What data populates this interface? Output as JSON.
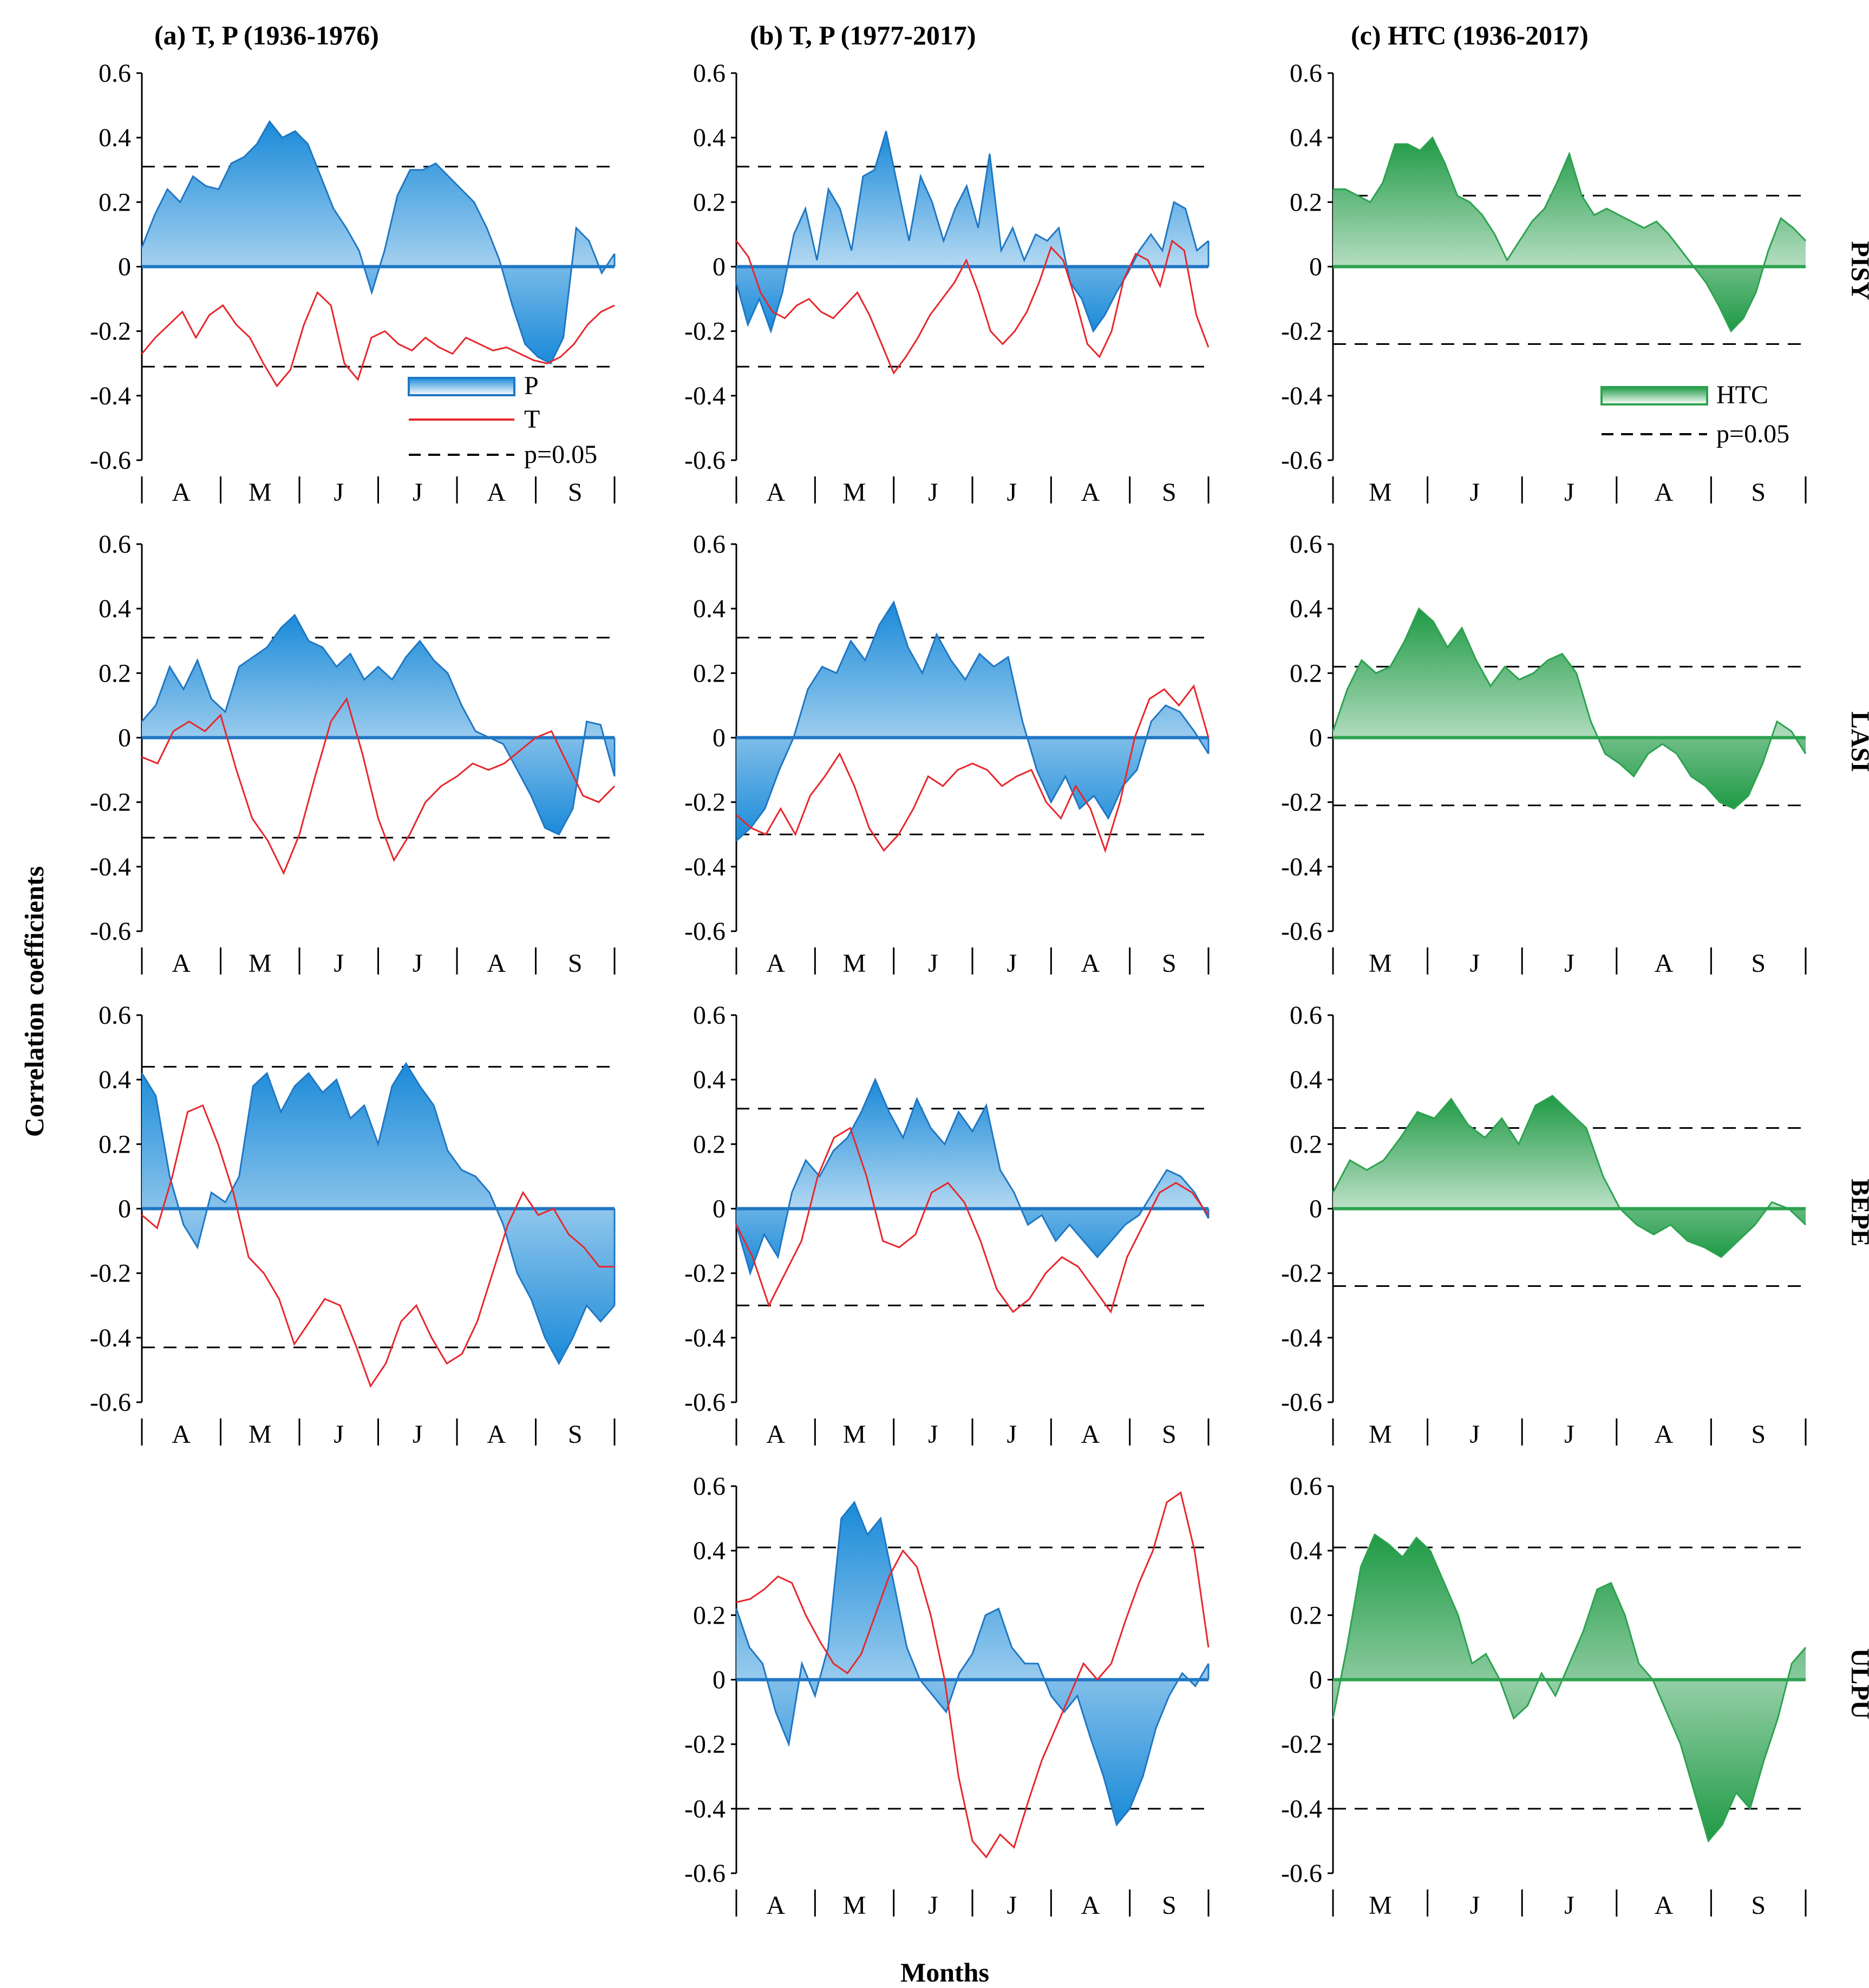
{
  "figure": {
    "column_titles": [
      "(a)   T, P (1936-1976)",
      "(b)   T, P (1977-2017)",
      "(c)   HTC (1936-2017)"
    ],
    "row_labels": [
      "PISY",
      "LASI",
      "BEPE",
      "ULPU"
    ],
    "ylabel": "Correlation coefficients",
    "xlabel": "Months",
    "legend_tp": {
      "p": "P",
      "t": "T",
      "sig": "p=0.05"
    },
    "legend_htc": {
      "htc": "HTC",
      "sig": "p=0.05"
    },
    "colors": {
      "precip": "#1f77c4",
      "precip_fill": "#2b9ce0",
      "temp": "#e8262c",
      "htc": "#2ca24f",
      "htc_fill": "#27a34a"
    }
  },
  "chart_data": [
    {
      "type": "area",
      "panel": "a-PISY",
      "col": 0,
      "row": 0,
      "months": [
        "A",
        "M",
        "J",
        "J",
        "A",
        "S"
      ],
      "ylim": [
        -0.6,
        0.6
      ],
      "yticks": [
        "0.6",
        "0.4",
        "0.2",
        "0",
        "-0.2",
        "-0.4",
        "-0.6"
      ],
      "sig": [
        0.31,
        -0.31
      ],
      "series": [
        {
          "name": "P",
          "values": [
            0.06,
            0.16,
            0.24,
            0.2,
            0.28,
            0.25,
            0.24,
            0.32,
            0.34,
            0.38,
            0.45,
            0.4,
            0.42,
            0.38,
            0.28,
            0.18,
            0.12,
            0.05,
            -0.08,
            0.05,
            0.22,
            0.3,
            0.3,
            0.32,
            0.28,
            0.24,
            0.2,
            0.12,
            0.02,
            -0.12,
            -0.24,
            -0.28,
            -0.3,
            -0.22,
            0.12,
            0.08,
            -0.02,
            0.04
          ]
        },
        {
          "name": "T",
          "values": [
            -0.27,
            -0.22,
            -0.18,
            -0.14,
            -0.22,
            -0.15,
            -0.12,
            -0.18,
            -0.22,
            -0.3,
            -0.37,
            -0.32,
            -0.18,
            -0.08,
            -0.12,
            -0.3,
            -0.35,
            -0.22,
            -0.2,
            -0.24,
            -0.26,
            -0.22,
            -0.25,
            -0.27,
            -0.22,
            -0.24,
            -0.26,
            -0.25,
            -0.27,
            -0.29,
            -0.3,
            -0.28,
            -0.24,
            -0.18,
            -0.14,
            -0.12
          ]
        }
      ]
    },
    {
      "type": "area",
      "panel": "b-PISY",
      "col": 1,
      "row": 0,
      "months": [
        "A",
        "M",
        "J",
        "J",
        "A",
        "S"
      ],
      "ylim": [
        -0.6,
        0.6
      ],
      "yticks": [
        "0.6",
        "0.4",
        "0.2",
        "0",
        "-0.2",
        "-0.4",
        "-0.6"
      ],
      "sig": [
        0.31,
        -0.31
      ],
      "series": [
        {
          "name": "P",
          "values": [
            -0.05,
            -0.18,
            -0.1,
            -0.2,
            -0.08,
            0.1,
            0.18,
            0.02,
            0.24,
            0.18,
            0.05,
            0.28,
            0.3,
            0.42,
            0.25,
            0.08,
            0.28,
            0.2,
            0.08,
            0.18,
            0.25,
            0.12,
            0.35,
            0.05,
            0.12,
            0.02,
            0.1,
            0.08,
            0.12,
            -0.05,
            -0.1,
            -0.2,
            -0.15,
            -0.08,
            -0.02,
            0.05,
            0.1,
            0.05,
            0.2,
            0.18,
            0.05,
            0.08
          ]
        },
        {
          "name": "T",
          "values": [
            0.08,
            0.03,
            -0.08,
            -0.14,
            -0.16,
            -0.12,
            -0.1,
            -0.14,
            -0.16,
            -0.12,
            -0.08,
            -0.15,
            -0.24,
            -0.33,
            -0.28,
            -0.22,
            -0.15,
            -0.1,
            -0.05,
            0.02,
            -0.08,
            -0.2,
            -0.24,
            -0.2,
            -0.14,
            -0.05,
            0.06,
            0.02,
            -0.1,
            -0.24,
            -0.28,
            -0.2,
            -0.04,
            0.04,
            0.02,
            -0.06,
            0.08,
            0.05,
            -0.15,
            -0.25
          ]
        }
      ]
    },
    {
      "type": "area",
      "panel": "c-PISY",
      "col": 2,
      "row": 0,
      "months": [
        "M",
        "J",
        "J",
        "A",
        "S"
      ],
      "ylim": [
        -0.6,
        0.6
      ],
      "yticks": [
        "0.6",
        "0.4",
        "0.2",
        "0",
        "-0.2",
        "-0.4",
        "-0.6"
      ],
      "sig": [
        0.22,
        -0.24
      ],
      "series": [
        {
          "name": "HTC",
          "values": [
            0.24,
            0.24,
            0.22,
            0.2,
            0.26,
            0.38,
            0.38,
            0.36,
            0.4,
            0.32,
            0.22,
            0.2,
            0.16,
            0.1,
            0.02,
            0.08,
            0.14,
            0.18,
            0.26,
            0.35,
            0.22,
            0.16,
            0.18,
            0.16,
            0.14,
            0.12,
            0.14,
            0.1,
            0.05,
            0.0,
            -0.05,
            -0.12,
            -0.2,
            -0.16,
            -0.08,
            0.05,
            0.15,
            0.12,
            0.08
          ]
        }
      ]
    },
    {
      "type": "area",
      "panel": "a-LASI",
      "col": 0,
      "row": 1,
      "months": [
        "A",
        "M",
        "J",
        "J",
        "A",
        "S"
      ],
      "ylim": [
        -0.6,
        0.6
      ],
      "yticks": [
        "0.6",
        "0.4",
        "0.2",
        "0",
        "-0.2",
        "-0.4",
        "-0.6"
      ],
      "sig": [
        0.31,
        -0.31
      ],
      "series": [
        {
          "name": "P",
          "values": [
            0.05,
            0.1,
            0.22,
            0.15,
            0.24,
            0.12,
            0.08,
            0.22,
            0.25,
            0.28,
            0.34,
            0.38,
            0.3,
            0.28,
            0.22,
            0.26,
            0.18,
            0.22,
            0.18,
            0.25,
            0.3,
            0.24,
            0.2,
            0.1,
            0.02,
            0.0,
            -0.02,
            -0.1,
            -0.18,
            -0.28,
            -0.3,
            -0.22,
            0.05,
            0.04,
            -0.12
          ]
        },
        {
          "name": "T",
          "values": [
            -0.06,
            -0.08,
            0.02,
            0.05,
            0.02,
            0.07,
            -0.1,
            -0.25,
            -0.32,
            -0.42,
            -0.3,
            -0.12,
            0.05,
            0.12,
            -0.05,
            -0.25,
            -0.38,
            -0.3,
            -0.2,
            -0.15,
            -0.12,
            -0.08,
            -0.1,
            -0.08,
            -0.04,
            0.0,
            0.02,
            -0.08,
            -0.18,
            -0.2,
            -0.15
          ]
        }
      ]
    },
    {
      "type": "area",
      "panel": "b-LASI",
      "col": 1,
      "row": 1,
      "months": [
        "A",
        "M",
        "J",
        "J",
        "A",
        "S"
      ],
      "ylim": [
        -0.6,
        0.6
      ],
      "yticks": [
        "0.6",
        "0.4",
        "0.2",
        "0",
        "-0.2",
        "-0.4",
        "-0.6"
      ],
      "sig": [
        0.31,
        -0.3
      ],
      "series": [
        {
          "name": "P",
          "values": [
            -0.32,
            -0.28,
            -0.22,
            -0.1,
            0.0,
            0.15,
            0.22,
            0.2,
            0.3,
            0.24,
            0.35,
            0.42,
            0.28,
            0.2,
            0.32,
            0.24,
            0.18,
            0.26,
            0.22,
            0.25,
            0.05,
            -0.1,
            -0.2,
            -0.12,
            -0.22,
            -0.18,
            -0.25,
            -0.15,
            -0.1,
            0.05,
            0.1,
            0.08,
            0.02,
            -0.05
          ]
        },
        {
          "name": "T",
          "values": [
            -0.24,
            -0.28,
            -0.3,
            -0.22,
            -0.3,
            -0.18,
            -0.12,
            -0.05,
            -0.15,
            -0.28,
            -0.35,
            -0.3,
            -0.22,
            -0.12,
            -0.15,
            -0.1,
            -0.08,
            -0.1,
            -0.15,
            -0.12,
            -0.1,
            -0.2,
            -0.25,
            -0.15,
            -0.22,
            -0.35,
            -0.2,
            0.0,
            0.12,
            0.15,
            0.1,
            0.16,
            0.0
          ]
        }
      ]
    },
    {
      "type": "area",
      "panel": "c-LASI",
      "col": 2,
      "row": 1,
      "months": [
        "M",
        "J",
        "J",
        "A",
        "S"
      ],
      "ylim": [
        -0.6,
        0.6
      ],
      "yticks": [
        "0.6",
        "0.4",
        "0.2",
        "0",
        "-0.2",
        "-0.4",
        "-0.6"
      ],
      "sig": [
        0.22,
        -0.21
      ],
      "series": [
        {
          "name": "HTC",
          "values": [
            0.02,
            0.15,
            0.24,
            0.2,
            0.22,
            0.3,
            0.4,
            0.36,
            0.28,
            0.34,
            0.24,
            0.16,
            0.22,
            0.18,
            0.2,
            0.24,
            0.26,
            0.2,
            0.05,
            -0.05,
            -0.08,
            -0.12,
            -0.05,
            -0.02,
            -0.05,
            -0.12,
            -0.15,
            -0.2,
            -0.22,
            -0.18,
            -0.08,
            0.05,
            0.02,
            -0.05
          ]
        }
      ]
    },
    {
      "type": "area",
      "panel": "a-BEPE",
      "col": 0,
      "row": 2,
      "months": [
        "A",
        "M",
        "J",
        "J",
        "A",
        "S"
      ],
      "ylim": [
        -0.6,
        0.6
      ],
      "yticks": [
        "0.6",
        "0.4",
        "0.2",
        "0",
        "-0.2",
        "-0.4",
        "-0.6"
      ],
      "sig": [
        0.44,
        -0.43
      ],
      "series": [
        {
          "name": "P",
          "values": [
            0.42,
            0.35,
            0.1,
            -0.05,
            -0.12,
            0.05,
            0.02,
            0.1,
            0.38,
            0.42,
            0.3,
            0.38,
            0.42,
            0.36,
            0.4,
            0.28,
            0.32,
            0.2,
            0.38,
            0.45,
            0.38,
            0.32,
            0.18,
            0.12,
            0.1,
            0.05,
            -0.05,
            -0.2,
            -0.28,
            -0.4,
            -0.48,
            -0.4,
            -0.3,
            -0.35,
            -0.3
          ]
        },
        {
          "name": "T",
          "values": [
            -0.02,
            -0.06,
            0.1,
            0.3,
            0.32,
            0.2,
            0.05,
            -0.15,
            -0.2,
            -0.28,
            -0.42,
            -0.35,
            -0.28,
            -0.3,
            -0.42,
            -0.55,
            -0.48,
            -0.35,
            -0.3,
            -0.4,
            -0.48,
            -0.45,
            -0.35,
            -0.2,
            -0.05,
            0.05,
            -0.02,
            0.0,
            -0.08,
            -0.12,
            -0.18,
            -0.18
          ]
        }
      ]
    },
    {
      "type": "area",
      "panel": "b-BEPE",
      "col": 1,
      "row": 2,
      "months": [
        "A",
        "M",
        "J",
        "J",
        "A",
        "S"
      ],
      "ylim": [
        -0.6,
        0.6
      ],
      "yticks": [
        "0.6",
        "0.4",
        "0.2",
        "0",
        "-0.2",
        "-0.4",
        "-0.6"
      ],
      "sig": [
        0.31,
        -0.3
      ],
      "series": [
        {
          "name": "P",
          "values": [
            -0.05,
            -0.2,
            -0.08,
            -0.15,
            0.05,
            0.15,
            0.1,
            0.18,
            0.22,
            0.3,
            0.4,
            0.3,
            0.22,
            0.34,
            0.25,
            0.2,
            0.3,
            0.24,
            0.32,
            0.12,
            0.05,
            -0.05,
            -0.02,
            -0.1,
            -0.05,
            -0.1,
            -0.15,
            -0.1,
            -0.05,
            -0.02,
            0.05,
            0.12,
            0.1,
            0.05,
            -0.03
          ]
        },
        {
          "name": "T",
          "values": [
            -0.05,
            -0.15,
            -0.3,
            -0.2,
            -0.1,
            0.1,
            0.22,
            0.25,
            0.1,
            -0.1,
            -0.12,
            -0.08,
            0.05,
            0.08,
            0.02,
            -0.1,
            -0.25,
            -0.32,
            -0.28,
            -0.2,
            -0.15,
            -0.18,
            -0.25,
            -0.32,
            -0.15,
            -0.05,
            0.05,
            0.08,
            0.05,
            -0.02
          ]
        }
      ]
    },
    {
      "type": "area",
      "panel": "b-ULPU",
      "col": 1,
      "row": 3,
      "months": [
        "A",
        "M",
        "J",
        "J",
        "A",
        "S"
      ],
      "ylim": [
        -0.6,
        0.6
      ],
      "yticks": [
        "0.6",
        "0.4",
        "0.2",
        "0",
        "-0.2",
        "-0.4",
        "-0.6"
      ],
      "sig": [
        0.41,
        -0.4
      ],
      "series": [
        {
          "name": "P",
          "values": [
            0.22,
            0.1,
            0.05,
            -0.1,
            -0.2,
            0.05,
            -0.05,
            0.1,
            0.5,
            0.55,
            0.45,
            0.5,
            0.3,
            0.1,
            0.0,
            -0.05,
            -0.1,
            0.02,
            0.08,
            0.2,
            0.22,
            0.1,
            0.05,
            0.05,
            -0.05,
            -0.1,
            -0.05,
            -0.18,
            -0.3,
            -0.45,
            -0.4,
            -0.3,
            -0.15,
            -0.05,
            0.02,
            -0.02,
            0.05
          ]
        },
        {
          "name": "T",
          "values": [
            0.24,
            0.25,
            0.28,
            0.32,
            0.3,
            0.2,
            0.12,
            0.05,
            0.02,
            0.08,
            0.2,
            0.32,
            0.4,
            0.35,
            0.2,
            0.0,
            -0.3,
            -0.5,
            -0.55,
            -0.48,
            -0.52,
            -0.38,
            -0.25,
            -0.15,
            -0.05,
            0.05,
            0.0,
            0.05,
            0.18,
            0.3,
            0.4,
            0.55,
            0.58,
            0.4,
            0.1
          ]
        }
      ]
    },
    {
      "type": "area",
      "panel": "c-ULPU",
      "col": 2,
      "row": 3,
      "months": [
        "M",
        "J",
        "J",
        "A",
        "S"
      ],
      "ylim": [
        -0.6,
        0.6
      ],
      "yticks": [
        "0.6",
        "0.4",
        "0.2",
        "0",
        "-0.2",
        "-0.4",
        "-0.6"
      ],
      "sig": [
        0.41,
        -0.4
      ],
      "series": [
        {
          "name": "HTC",
          "values": [
            -0.12,
            0.1,
            0.35,
            0.45,
            0.42,
            0.38,
            0.44,
            0.4,
            0.3,
            0.2,
            0.05,
            0.08,
            0.0,
            -0.12,
            -0.08,
            0.02,
            -0.05,
            0.05,
            0.15,
            0.28,
            0.3,
            0.2,
            0.05,
            0.0,
            -0.1,
            -0.2,
            -0.35,
            -0.5,
            -0.45,
            -0.35,
            -0.4,
            -0.25,
            -0.12,
            0.05,
            0.1
          ]
        }
      ]
    },
    {
      "type": "area",
      "panel": "c-BEPE",
      "col": 2,
      "row": 2,
      "months": [
        "M",
        "J",
        "J",
        "A",
        "S"
      ],
      "ylim": [
        -0.6,
        0.6
      ],
      "yticks": [
        "0.6",
        "0.4",
        "0.2",
        "0",
        "-0.2",
        "-0.4",
        "-0.6"
      ],
      "sig": [
        0.25,
        -0.24
      ],
      "series": [
        {
          "name": "HTC",
          "values": [
            0.05,
            0.15,
            0.12,
            0.15,
            0.22,
            0.3,
            0.28,
            0.34,
            0.26,
            0.22,
            0.28,
            0.2,
            0.32,
            0.35,
            0.3,
            0.25,
            0.1,
            0.0,
            -0.05,
            -0.08,
            -0.05,
            -0.1,
            -0.12,
            -0.15,
            -0.1,
            -0.05,
            0.02,
            0.0,
            -0.05
          ]
        }
      ]
    }
  ]
}
